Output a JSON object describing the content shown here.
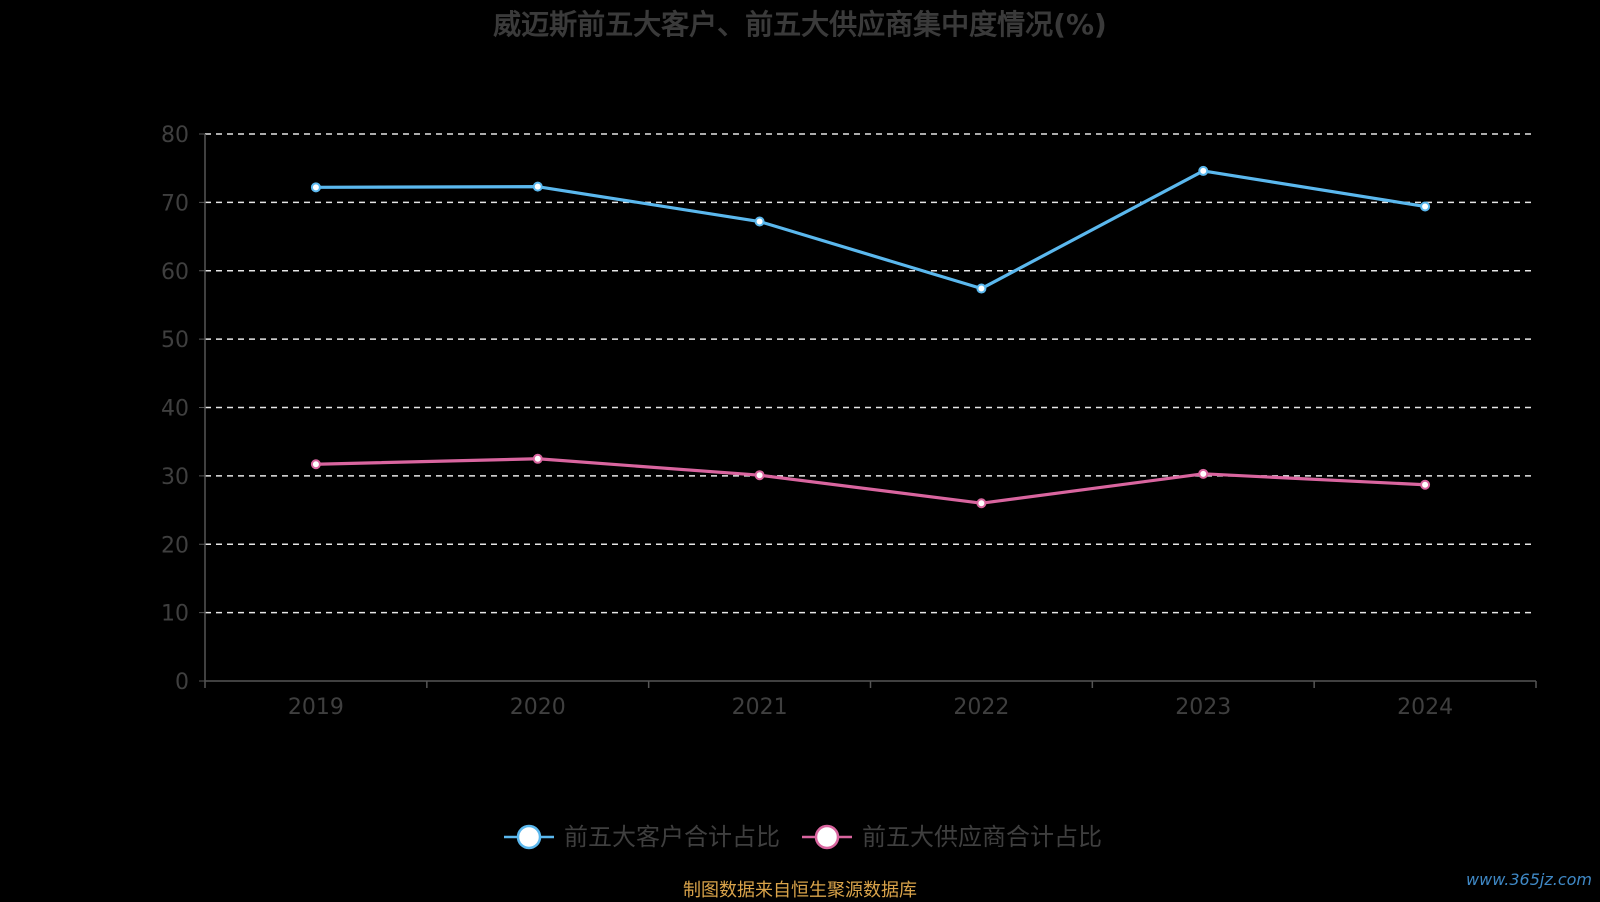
{
  "chart_data": {
    "type": "line",
    "title": "威迈斯前五大客户、前五大供应商集中度情况(%)",
    "categories": [
      "2019",
      "2020",
      "2021",
      "2022",
      "2023",
      "2024"
    ],
    "ylim": [
      0,
      80
    ],
    "yticks": [
      0,
      10,
      20,
      30,
      40,
      50,
      60,
      70,
      80
    ],
    "grid": true,
    "legend_position": "bottom",
    "series": [
      {
        "name": "前五大客户合计占比",
        "color": "#5bb8ee",
        "values": [
          72.2,
          72.3,
          67.2,
          57.4,
          74.6,
          69.4
        ]
      },
      {
        "name": "前五大供应商合计占比",
        "color": "#d9659f",
        "values": [
          31.7,
          32.5,
          30.1,
          26.0,
          30.3,
          28.7
        ]
      }
    ]
  },
  "footer": "制图数据来自恒生聚源数据库",
  "watermark": "www.365jz.com"
}
